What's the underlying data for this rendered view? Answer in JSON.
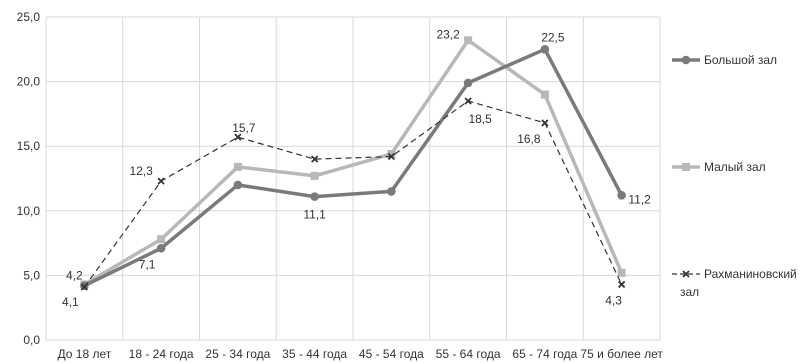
{
  "chart_data": {
    "type": "line",
    "categories": [
      "До 18 лет",
      "18 - 24 года",
      "25 - 34 года",
      "35 - 44 года",
      "45 - 54 года",
      "55 - 64 года",
      "65 - 74 года",
      "75 и более лет"
    ],
    "ylim": [
      0,
      25
    ],
    "yticks": [
      "0,0",
      "5,0",
      "10,0",
      "15,0",
      "20,0",
      "25,0"
    ],
    "grid": true,
    "legend_position": "right",
    "series": [
      {
        "name": "Большой зал",
        "values": [
          4.2,
          7.1,
          12.0,
          11.1,
          11.5,
          19.9,
          22.5,
          11.2
        ],
        "color": "#7a7a7a",
        "style": "solid-thick",
        "marker": "circle",
        "labels": [
          "4,2",
          "7,1",
          "",
          "11,1",
          "",
          "",
          "22,5",
          "11,2"
        ]
      },
      {
        "name": "Малый зал",
        "values": [
          4.3,
          7.8,
          13.4,
          12.7,
          14.4,
          23.2,
          19.0,
          5.2
        ],
        "color": "#b8b8b8",
        "style": "solid-thick",
        "marker": "square",
        "labels": [
          "",
          "",
          "",
          "",
          "",
          "23,2",
          "",
          ""
        ]
      },
      {
        "name": "Рахманиновский зал",
        "legend_lines": [
          "Рахманиновский",
          "зал"
        ],
        "values": [
          4.1,
          12.3,
          15.7,
          14.0,
          14.2,
          18.5,
          16.8,
          4.3
        ],
        "color": "#333333",
        "style": "dashed",
        "marker": "x",
        "labels": [
          "4,1",
          "12,3",
          "15,7",
          "",
          "",
          "18,5",
          "16,8",
          "4,3"
        ]
      }
    ]
  }
}
